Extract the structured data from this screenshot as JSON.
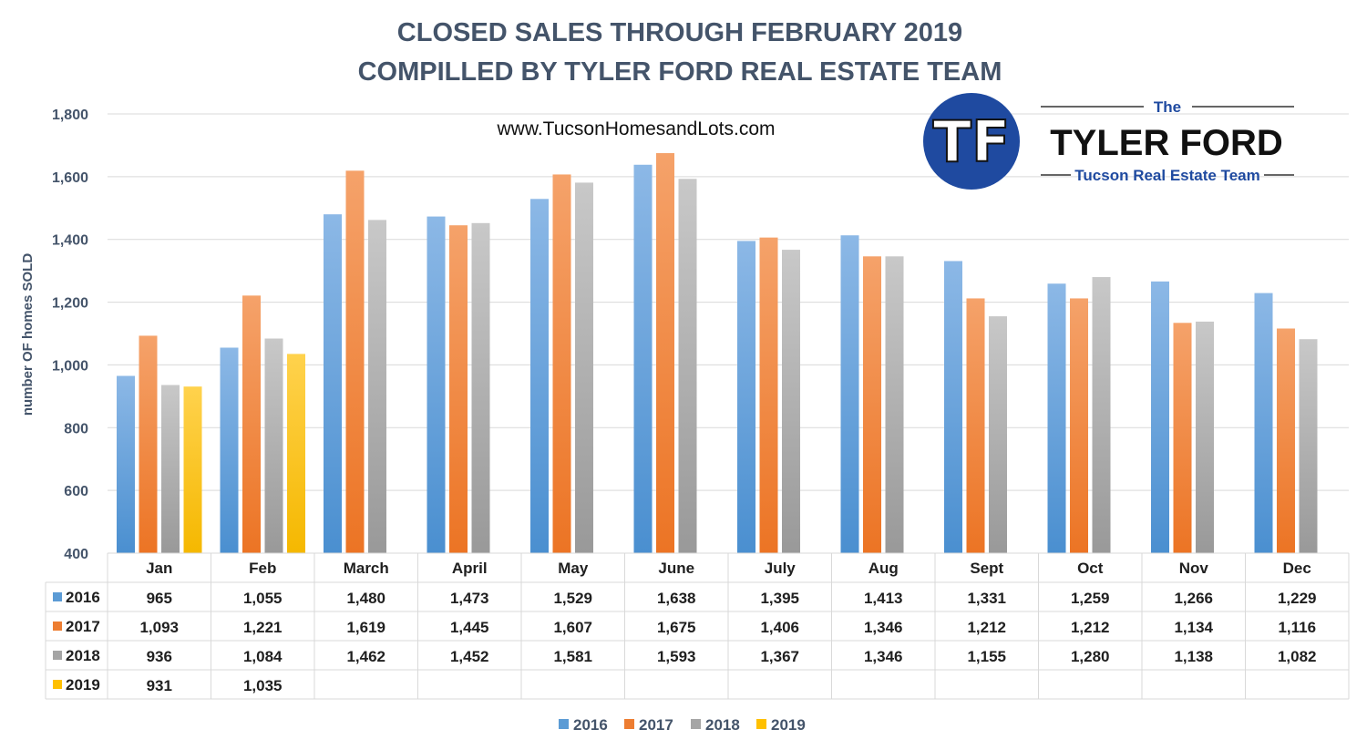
{
  "title_line1": "CLOSED SALES THROUGH FEBRUARY 2019",
  "title_line2": "COMPILLED BY TYLER FORD REAL ESTATE TEAM",
  "website": "www.TucsonHomesandLots.com",
  "logo": {
    "the": "The",
    "name": "TYLER FORD",
    "subtitle": "Tucson Real Estate Team",
    "monogram": "TF",
    "brand_blue": "#1f4aa0"
  },
  "chart_data": {
    "type": "bar",
    "title": "CLOSED SALES THROUGH FEBRUARY 2019",
    "ylabel": "number OF homes SOLD",
    "xlabel": "",
    "ylim": [
      400,
      1800
    ],
    "yticks": [
      "400",
      "600",
      "800",
      "1,000",
      "1,200",
      "1,400",
      "1,600",
      "1,800"
    ],
    "ytick_values": [
      400,
      600,
      800,
      1000,
      1200,
      1400,
      1600,
      1800
    ],
    "grid": true,
    "legend_position": "bottom",
    "categories": [
      "Jan",
      "Feb",
      "March",
      "April",
      "May",
      "June",
      "July",
      "Aug",
      "Sept",
      "Oct",
      "Nov",
      "Dec"
    ],
    "series": [
      {
        "name": "2016",
        "color": "#5b9bd5",
        "values": [
          965,
          1055,
          1480,
          1473,
          1529,
          1638,
          1395,
          1413,
          1331,
          1259,
          1266,
          1229
        ],
        "labels": [
          "965",
          "1,055",
          "1,480",
          "1,473",
          "1,529",
          "1,638",
          "1,395",
          "1,413",
          "1,331",
          "1,259",
          "1,266",
          "1,229"
        ]
      },
      {
        "name": "2017",
        "color": "#ed7d31",
        "values": [
          1093,
          1221,
          1619,
          1445,
          1607,
          1675,
          1406,
          1346,
          1212,
          1212,
          1134,
          1116
        ],
        "labels": [
          "1,093",
          "1,221",
          "1,619",
          "1,445",
          "1,607",
          "1,675",
          "1,406",
          "1,346",
          "1,212",
          "1,212",
          "1,134",
          "1,116"
        ]
      },
      {
        "name": "2018",
        "color": "#a5a5a5",
        "values": [
          936,
          1084,
          1462,
          1452,
          1581,
          1593,
          1367,
          1346,
          1155,
          1280,
          1138,
          1082
        ],
        "labels": [
          "936",
          "1,084",
          "1,462",
          "1,452",
          "1,581",
          "1,593",
          "1,367",
          "1,346",
          "1,155",
          "1,280",
          "1,138",
          "1,082"
        ]
      },
      {
        "name": "2019",
        "color": "#ffc000",
        "values": [
          931,
          1035,
          null,
          null,
          null,
          null,
          null,
          null,
          null,
          null,
          null,
          null
        ],
        "labels": [
          "931",
          "1,035",
          "",
          "",
          "",
          "",
          "",
          "",
          "",
          "",
          "",
          ""
        ]
      }
    ]
  }
}
